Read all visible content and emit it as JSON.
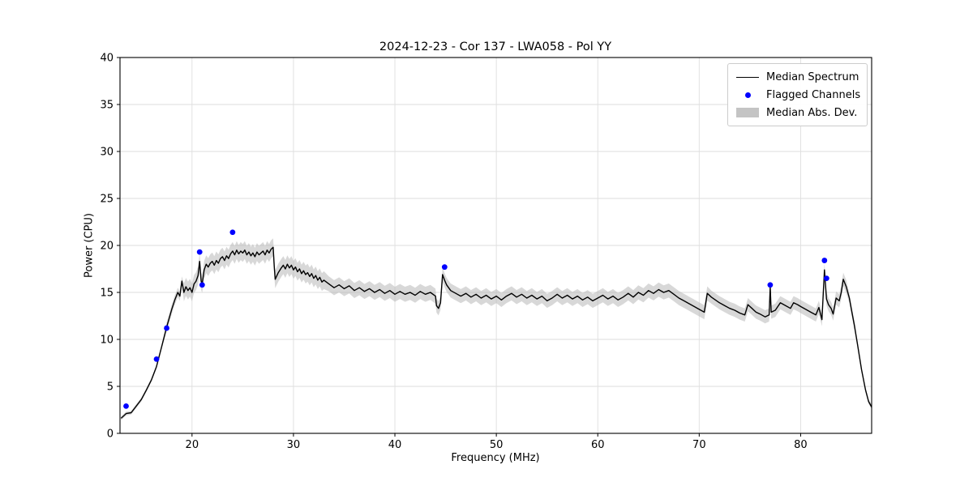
{
  "page": {
    "background": "#ffffff"
  },
  "chart_data": {
    "type": "line",
    "title": "2024-12-23 - Cor 137 - LWA058 - Pol YY",
    "xlabel": "Frequency (MHz)",
    "ylabel": "Power (CPU)",
    "xlim": [
      12.9,
      87.0
    ],
    "ylim": [
      0,
      40
    ],
    "xticks": [
      20,
      30,
      40,
      50,
      60,
      70,
      80
    ],
    "yticks": [
      0,
      5,
      10,
      15,
      20,
      25,
      30,
      35,
      40
    ],
    "grid": true,
    "colors": {
      "line": "#000000",
      "flagged": "#0000ff",
      "band": "#b8b8b8",
      "grid": "#dedede",
      "spine": "#000000"
    },
    "legend": {
      "position": "upper right",
      "entries": [
        {
          "label": "Median Spectrum",
          "type": "line",
          "color": "#000000"
        },
        {
          "label": "Flagged Channels",
          "type": "point",
          "color": "#0000ff"
        },
        {
          "label": "Median Abs. Dev.",
          "type": "patch",
          "color": "#c4c4c4"
        }
      ]
    },
    "series": [
      {
        "name": "Median Spectrum",
        "type": "line",
        "color": "#000000",
        "points": [
          [
            13.0,
            1.6
          ],
          [
            13.3,
            1.9
          ],
          [
            13.5,
            2.1
          ],
          [
            14.0,
            2.2
          ],
          [
            14.5,
            2.9
          ],
          [
            15.0,
            3.6
          ],
          [
            15.5,
            4.6
          ],
          [
            16.0,
            5.7
          ],
          [
            16.5,
            7.1
          ],
          [
            17.0,
            9.2
          ],
          [
            17.5,
            11.3
          ],
          [
            18.0,
            13.2
          ],
          [
            18.3,
            14.2
          ],
          [
            18.6,
            15.0
          ],
          [
            18.8,
            14.6
          ],
          [
            19.0,
            16.2
          ],
          [
            19.2,
            15.0
          ],
          [
            19.4,
            15.6
          ],
          [
            19.6,
            15.2
          ],
          [
            19.8,
            15.5
          ],
          [
            20.0,
            15.0
          ],
          [
            20.2,
            15.9
          ],
          [
            20.4,
            16.2
          ],
          [
            20.6,
            16.8
          ],
          [
            20.75,
            18.3
          ],
          [
            20.9,
            16.2
          ],
          [
            21.0,
            15.9
          ],
          [
            21.2,
            17.4
          ],
          [
            21.4,
            18.0
          ],
          [
            21.6,
            17.7
          ],
          [
            21.8,
            18.1
          ],
          [
            22.0,
            18.3
          ],
          [
            22.2,
            17.9
          ],
          [
            22.4,
            18.4
          ],
          [
            22.6,
            18.1
          ],
          [
            22.8,
            18.6
          ],
          [
            23.0,
            18.8
          ],
          [
            23.2,
            18.4
          ],
          [
            23.4,
            18.9
          ],
          [
            23.6,
            18.6
          ],
          [
            23.8,
            19.1
          ],
          [
            24.0,
            19.4
          ],
          [
            24.2,
            19.0
          ],
          [
            24.4,
            19.5
          ],
          [
            24.6,
            19.1
          ],
          [
            24.8,
            19.4
          ],
          [
            25.0,
            19.2
          ],
          [
            25.2,
            19.5
          ],
          [
            25.4,
            19.0
          ],
          [
            25.6,
            19.3
          ],
          [
            25.8,
            18.9
          ],
          [
            26.0,
            19.2
          ],
          [
            26.2,
            18.8
          ],
          [
            26.4,
            19.3
          ],
          [
            26.6,
            19.0
          ],
          [
            26.8,
            19.2
          ],
          [
            27.0,
            19.4
          ],
          [
            27.2,
            19.0
          ],
          [
            27.4,
            19.5
          ],
          [
            27.6,
            19.2
          ],
          [
            27.8,
            19.6
          ],
          [
            28.0,
            19.8
          ],
          [
            28.1,
            17.8
          ],
          [
            28.2,
            16.4
          ],
          [
            28.5,
            17.1
          ],
          [
            28.8,
            17.6
          ],
          [
            29.0,
            17.9
          ],
          [
            29.2,
            17.5
          ],
          [
            29.4,
            18.0
          ],
          [
            29.6,
            17.6
          ],
          [
            29.8,
            17.9
          ],
          [
            30.0,
            17.4
          ],
          [
            30.2,
            17.7
          ],
          [
            30.4,
            17.2
          ],
          [
            30.6,
            17.5
          ],
          [
            30.8,
            17.0
          ],
          [
            31.0,
            17.3
          ],
          [
            31.2,
            16.9
          ],
          [
            31.4,
            17.1
          ],
          [
            31.6,
            16.7
          ],
          [
            31.8,
            17.0
          ],
          [
            32.0,
            16.5
          ],
          [
            32.2,
            16.8
          ],
          [
            32.4,
            16.3
          ],
          [
            32.6,
            16.6
          ],
          [
            32.8,
            16.1
          ],
          [
            33.0,
            16.3
          ],
          [
            33.5,
            15.9
          ],
          [
            34.0,
            15.5
          ],
          [
            34.5,
            15.8
          ],
          [
            35.0,
            15.4
          ],
          [
            35.5,
            15.7
          ],
          [
            36.0,
            15.2
          ],
          [
            36.5,
            15.5
          ],
          [
            37.0,
            15.1
          ],
          [
            37.5,
            15.4
          ],
          [
            38.0,
            15.0
          ],
          [
            38.5,
            15.3
          ],
          [
            39.0,
            14.9
          ],
          [
            39.5,
            15.2
          ],
          [
            40.0,
            14.8
          ],
          [
            40.5,
            15.1
          ],
          [
            41.0,
            14.8
          ],
          [
            41.5,
            15.0
          ],
          [
            42.0,
            14.7
          ],
          [
            42.5,
            15.1
          ],
          [
            43.0,
            14.8
          ],
          [
            43.5,
            15.0
          ],
          [
            44.0,
            14.6
          ],
          [
            44.1,
            13.6
          ],
          [
            44.3,
            13.3
          ],
          [
            44.5,
            13.9
          ],
          [
            44.7,
            16.9
          ],
          [
            44.9,
            16.3
          ],
          [
            45.1,
            15.8
          ],
          [
            45.5,
            15.2
          ],
          [
            46.0,
            14.9
          ],
          [
            46.5,
            14.6
          ],
          [
            47.0,
            14.9
          ],
          [
            47.5,
            14.5
          ],
          [
            48.0,
            14.8
          ],
          [
            48.5,
            14.4
          ],
          [
            49.0,
            14.7
          ],
          [
            49.5,
            14.3
          ],
          [
            50.0,
            14.6
          ],
          [
            50.5,
            14.2
          ],
          [
            51.0,
            14.6
          ],
          [
            51.5,
            14.9
          ],
          [
            52.0,
            14.5
          ],
          [
            52.5,
            14.8
          ],
          [
            53.0,
            14.4
          ],
          [
            53.5,
            14.7
          ],
          [
            54.0,
            14.3
          ],
          [
            54.5,
            14.6
          ],
          [
            55.0,
            14.1
          ],
          [
            55.5,
            14.4
          ],
          [
            56.0,
            14.8
          ],
          [
            56.5,
            14.4
          ],
          [
            57.0,
            14.7
          ],
          [
            57.5,
            14.3
          ],
          [
            58.0,
            14.6
          ],
          [
            58.5,
            14.2
          ],
          [
            59.0,
            14.5
          ],
          [
            59.5,
            14.1
          ],
          [
            60.0,
            14.4
          ],
          [
            60.5,
            14.7
          ],
          [
            61.0,
            14.3
          ],
          [
            61.5,
            14.6
          ],
          [
            62.0,
            14.2
          ],
          [
            62.5,
            14.5
          ],
          [
            63.0,
            14.9
          ],
          [
            63.5,
            14.5
          ],
          [
            64.0,
            15.0
          ],
          [
            64.5,
            14.7
          ],
          [
            65.0,
            15.2
          ],
          [
            65.5,
            14.9
          ],
          [
            66.0,
            15.3
          ],
          [
            66.5,
            15.0
          ],
          [
            67.0,
            15.2
          ],
          [
            67.5,
            14.8
          ],
          [
            68.0,
            14.4
          ],
          [
            68.5,
            14.1
          ],
          [
            69.0,
            13.8
          ],
          [
            69.5,
            13.5
          ],
          [
            70.0,
            13.2
          ],
          [
            70.5,
            12.9
          ],
          [
            70.8,
            14.9
          ],
          [
            71.2,
            14.5
          ],
          [
            71.6,
            14.2
          ],
          [
            72.0,
            13.9
          ],
          [
            72.5,
            13.6
          ],
          [
            73.0,
            13.3
          ],
          [
            73.5,
            13.1
          ],
          [
            74.0,
            12.8
          ],
          [
            74.5,
            12.6
          ],
          [
            74.8,
            13.7
          ],
          [
            75.2,
            13.3
          ],
          [
            75.6,
            12.9
          ],
          [
            76.0,
            12.7
          ],
          [
            76.5,
            12.4
          ],
          [
            76.9,
            12.6
          ],
          [
            77.0,
            15.6
          ],
          [
            77.1,
            12.9
          ],
          [
            77.5,
            13.1
          ],
          [
            78.0,
            13.9
          ],
          [
            78.5,
            13.6
          ],
          [
            79.0,
            13.3
          ],
          [
            79.3,
            13.9
          ],
          [
            79.7,
            13.7
          ],
          [
            80.0,
            13.5
          ],
          [
            80.5,
            13.2
          ],
          [
            81.0,
            12.9
          ],
          [
            81.5,
            12.6
          ],
          [
            81.8,
            13.4
          ],
          [
            82.1,
            12.1
          ],
          [
            82.35,
            17.4
          ],
          [
            82.55,
            14.3
          ],
          [
            82.75,
            13.7
          ],
          [
            83.0,
            13.3
          ],
          [
            83.2,
            12.7
          ],
          [
            83.5,
            14.4
          ],
          [
            83.8,
            14.1
          ],
          [
            84.0,
            15.0
          ],
          [
            84.2,
            16.4
          ],
          [
            84.5,
            15.6
          ],
          [
            84.8,
            14.4
          ],
          [
            85.0,
            13.2
          ],
          [
            85.3,
            11.5
          ],
          [
            85.6,
            9.5
          ],
          [
            86.0,
            6.8
          ],
          [
            86.4,
            4.6
          ],
          [
            86.7,
            3.4
          ],
          [
            87.0,
            2.8
          ]
        ]
      },
      {
        "name": "Flagged Channels",
        "type": "scatter",
        "color": "#0000ff",
        "points": [
          [
            13.5,
            2.9
          ],
          [
            16.5,
            7.9
          ],
          [
            17.5,
            11.2
          ],
          [
            20.75,
            19.3
          ],
          [
            21.0,
            15.8
          ],
          [
            24.0,
            21.4
          ],
          [
            44.9,
            17.7
          ],
          [
            77.0,
            15.8
          ],
          [
            82.35,
            18.4
          ],
          [
            82.55,
            16.5
          ]
        ]
      },
      {
        "name": "Median Abs. Dev.",
        "type": "band",
        "color": "#b8b8b8",
        "half_width_segments": [
          {
            "from": 12.9,
            "to": 17.0,
            "dev": 0.2
          },
          {
            "from": 17.0,
            "to": 19.0,
            "dev": 0.5
          },
          {
            "from": 19.0,
            "to": 33.0,
            "dev": 0.95
          },
          {
            "from": 33.0,
            "to": 44.0,
            "dev": 0.8
          },
          {
            "from": 44.0,
            "to": 71.0,
            "dev": 0.75
          },
          {
            "from": 71.0,
            "to": 84.5,
            "dev": 0.7
          },
          {
            "from": 84.5,
            "to": 85.5,
            "dev": 0.5
          },
          {
            "from": 85.5,
            "to": 87.0,
            "dev": 0.25
          }
        ]
      }
    ]
  }
}
